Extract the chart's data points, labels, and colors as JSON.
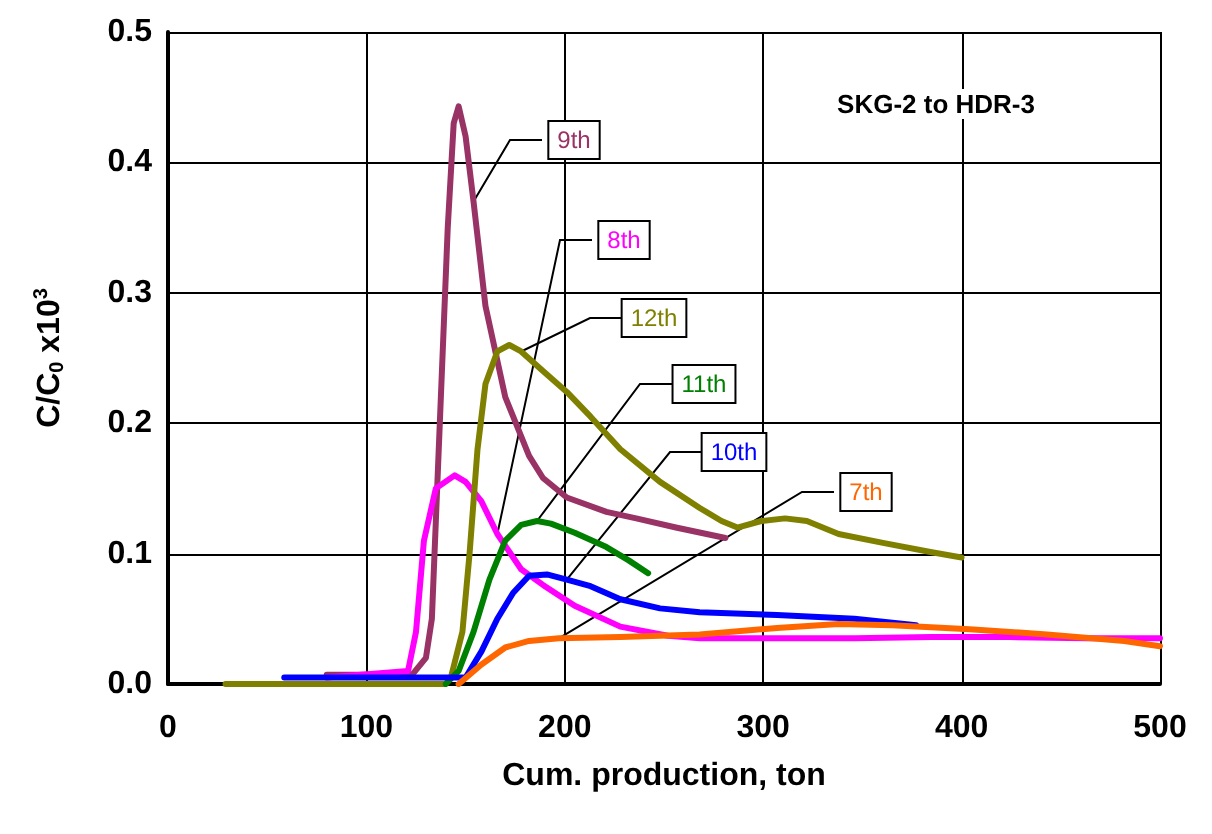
{
  "chart_data": {
    "type": "line",
    "xlabel": "Cum. production, ton",
    "ylabel": "C/C$_{0}$ x10$^{3}$",
    "annotations": [
      "SKG-2 to HDR-3"
    ],
    "xlim": [
      0,
      500
    ],
    "xticks": [
      0,
      100,
      200,
      300,
      400,
      500
    ],
    "ylim": [
      0,
      0.5
    ],
    "yticks": [
      {
        "value": 0,
        "label": "0.0"
      },
      0.1,
      0.2,
      0.3,
      0.4,
      0.5
    ],
    "grid": true,
    "legend": false,
    "marker": "none",
    "line_style": "solid",
    "series": [
      {
        "name": "9th",
        "color": "#993366",
        "x": [
          80,
          123,
          130,
          133,
          137,
          141,
          144,
          146.5,
          150,
          154,
          160,
          170,
          182,
          189,
          201,
          221,
          236,
          256,
          281
        ],
        "values": [
          0.007,
          0.007,
          0.02,
          0.05,
          0.2,
          0.35,
          0.43,
          0.443,
          0.42,
          0.37,
          0.29,
          0.22,
          0.175,
          0.158,
          0.143,
          0.132,
          0.127,
          0.12,
          0.112
        ]
      },
      {
        "name": "8th",
        "color": "#ff00ff",
        "x": [
          80,
          121,
          125,
          129,
          135,
          144.5,
          150,
          158,
          166,
          178,
          189,
          205,
          228,
          252,
          268,
          307,
          346,
          385,
          424,
          463,
          500
        ],
        "values": [
          0.005,
          0.01,
          0.04,
          0.11,
          0.15,
          0.16,
          0.155,
          0.14,
          0.115,
          0.088,
          0.076,
          0.06,
          0.044,
          0.037,
          0.035,
          0.035,
          0.035,
          0.036,
          0.036,
          0.035,
          0.035
        ]
      },
      {
        "name": "12th",
        "color": "#808000",
        "x": [
          29,
          140,
          142.6,
          148.4,
          152,
          156,
          160,
          166,
          172,
          178,
          189,
          201,
          213,
          228,
          248,
          268,
          279,
          287,
          299,
          311,
          322,
          338,
          361,
          385,
          400
        ],
        "values": [
          0,
          0,
          0.005,
          0.04,
          0.1,
          0.18,
          0.23,
          0.255,
          0.26,
          0.255,
          0.24,
          0.224,
          0.205,
          0.18,
          0.155,
          0.135,
          0.125,
          0.12,
          0.125,
          0.127,
          0.125,
          0.115,
          0.108,
          0.101,
          0.097
        ]
      },
      {
        "name": "11th",
        "color": "#008000",
        "x": [
          140,
          146.5,
          154,
          162,
          170,
          178,
          186,
          193,
          205,
          221,
          232,
          242
        ],
        "values": [
          0,
          0.01,
          0.04,
          0.08,
          0.11,
          0.122,
          0.125,
          0.123,
          0.116,
          0.105,
          0.095,
          0.085
        ]
      },
      {
        "name": "10th",
        "color": "#0000ff",
        "x": [
          58.6,
          140,
          150,
          158,
          166,
          174,
          182,
          191,
          201,
          213,
          228,
          248,
          268,
          307,
          346,
          377
        ],
        "values": [
          0.005,
          0.005,
          0.005,
          0.025,
          0.05,
          0.07,
          0.083,
          0.084,
          0.08,
          0.075,
          0.065,
          0.058,
          0.055,
          0.053,
          0.05,
          0.045
        ]
      },
      {
        "name": "7th",
        "color": "#ff6600",
        "x": [
          146.5,
          158,
          170,
          182,
          197,
          228,
          268,
          307,
          338,
          365,
          404,
          443,
          482,
          500
        ],
        "values": [
          0,
          0.015,
          0.028,
          0.033,
          0.035,
          0.036,
          0.038,
          0.043,
          0.046,
          0.045,
          0.042,
          0.038,
          0.033,
          0.029
        ]
      }
    ]
  }
}
